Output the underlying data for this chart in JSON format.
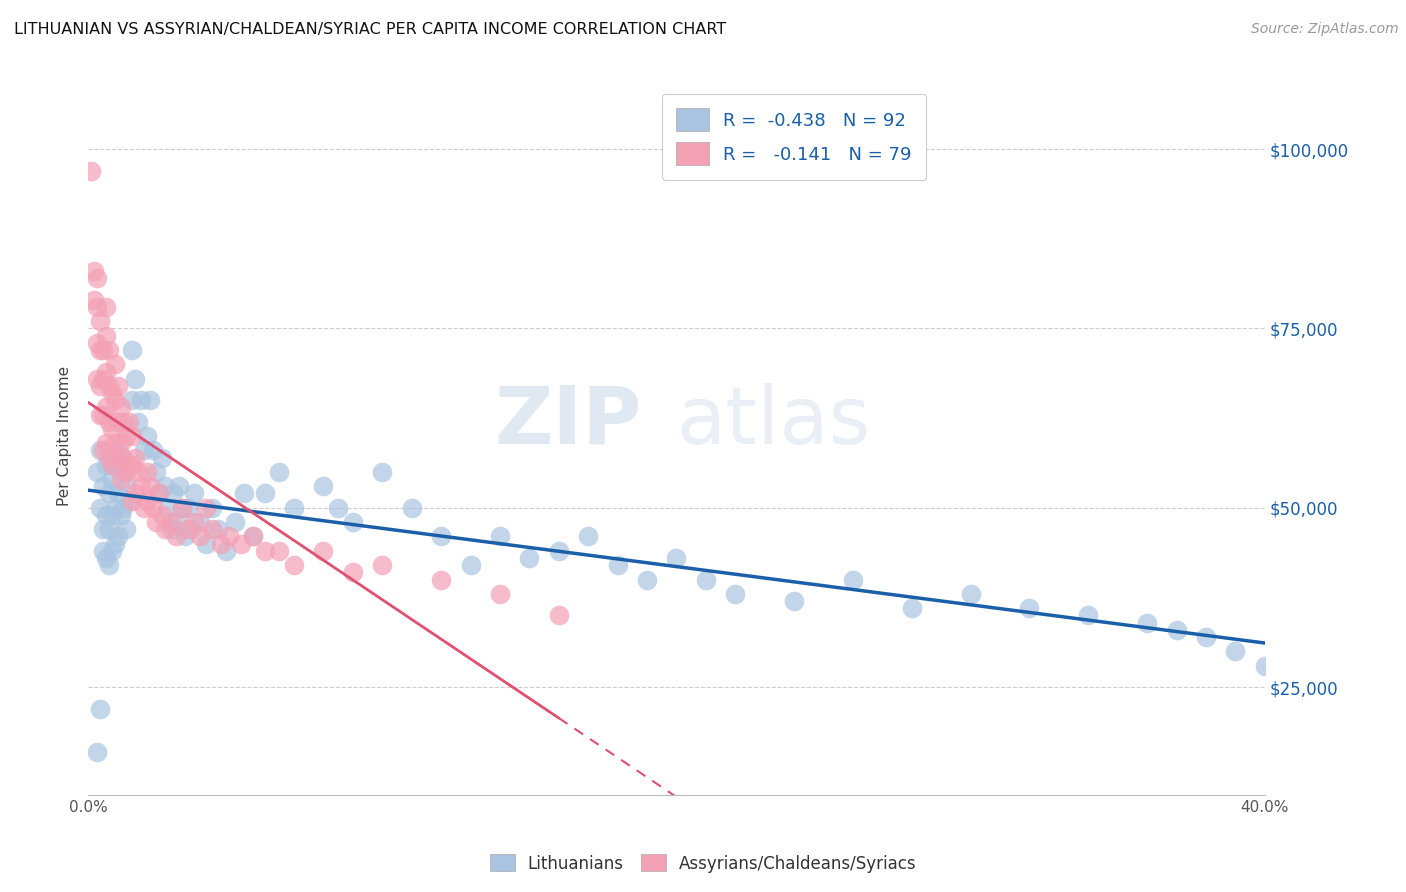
{
  "title": "LITHUANIAN VS ASSYRIAN/CHALDEAN/SYRIAC PER CAPITA INCOME CORRELATION CHART",
  "source": "Source: ZipAtlas.com",
  "ylabel": "Per Capita Income",
  "xlim": [
    0.0,
    0.4
  ],
  "ylim": [
    10000,
    110000
  ],
  "yticks": [
    25000,
    50000,
    75000,
    100000
  ],
  "ytick_labels": [
    "$25,000",
    "$50,000",
    "$75,000",
    "$100,000"
  ],
  "xticks": [
    0.0,
    0.05,
    0.1,
    0.15,
    0.2,
    0.25,
    0.3,
    0.35,
    0.4
  ],
  "blue_R": -0.438,
  "blue_N": 92,
  "pink_R": -0.141,
  "pink_N": 79,
  "blue_color": "#a8c4e0",
  "pink_color": "#f4a0b5",
  "blue_line_color": "#1a5fa8",
  "pink_line_color": "#e05070",
  "watermark_zip": "ZIP",
  "watermark_atlas": "atlas",
  "blue_points_x": [
    0.003,
    0.004,
    0.004,
    0.005,
    0.005,
    0.005,
    0.006,
    0.006,
    0.006,
    0.007,
    0.007,
    0.007,
    0.007,
    0.008,
    0.008,
    0.008,
    0.009,
    0.009,
    0.009,
    0.01,
    0.01,
    0.01,
    0.011,
    0.011,
    0.012,
    0.012,
    0.013,
    0.013,
    0.014,
    0.015,
    0.015,
    0.016,
    0.017,
    0.018,
    0.019,
    0.02,
    0.021,
    0.022,
    0.023,
    0.024,
    0.025,
    0.026,
    0.027,
    0.028,
    0.029,
    0.03,
    0.031,
    0.032,
    0.033,
    0.034,
    0.035,
    0.036,
    0.038,
    0.04,
    0.042,
    0.044,
    0.047,
    0.05,
    0.053,
    0.056,
    0.06,
    0.065,
    0.07,
    0.08,
    0.085,
    0.09,
    0.1,
    0.11,
    0.12,
    0.13,
    0.14,
    0.15,
    0.16,
    0.17,
    0.18,
    0.19,
    0.2,
    0.21,
    0.22,
    0.24,
    0.26,
    0.28,
    0.3,
    0.32,
    0.34,
    0.36,
    0.37,
    0.38,
    0.39,
    0.4,
    0.003,
    0.004
  ],
  "blue_points_y": [
    55000,
    58000,
    50000,
    53000,
    47000,
    44000,
    56000,
    49000,
    43000,
    57000,
    52000,
    47000,
    42000,
    54000,
    49000,
    44000,
    56000,
    50000,
    45000,
    58000,
    52000,
    46000,
    55000,
    49000,
    57000,
    50000,
    53000,
    47000,
    51000,
    72000,
    65000,
    68000,
    62000,
    65000,
    58000,
    60000,
    65000,
    58000,
    55000,
    52000,
    57000,
    53000,
    50000,
    47000,
    52000,
    48000,
    53000,
    50000,
    46000,
    50000,
    47000,
    52000,
    48000,
    45000,
    50000,
    47000,
    44000,
    48000,
    52000,
    46000,
    52000,
    55000,
    50000,
    53000,
    50000,
    48000,
    55000,
    50000,
    46000,
    42000,
    46000,
    43000,
    44000,
    46000,
    42000,
    40000,
    43000,
    40000,
    38000,
    37000,
    40000,
    36000,
    38000,
    36000,
    35000,
    34000,
    33000,
    32000,
    30000,
    28000,
    16000,
    22000
  ],
  "pink_points_x": [
    0.001,
    0.002,
    0.002,
    0.003,
    0.003,
    0.003,
    0.003,
    0.004,
    0.004,
    0.004,
    0.004,
    0.005,
    0.005,
    0.005,
    0.005,
    0.006,
    0.006,
    0.006,
    0.006,
    0.006,
    0.007,
    0.007,
    0.007,
    0.007,
    0.008,
    0.008,
    0.008,
    0.009,
    0.009,
    0.009,
    0.01,
    0.01,
    0.01,
    0.011,
    0.011,
    0.011,
    0.012,
    0.012,
    0.013,
    0.013,
    0.014,
    0.014,
    0.015,
    0.015,
    0.015,
    0.016,
    0.016,
    0.017,
    0.018,
    0.019,
    0.02,
    0.02,
    0.021,
    0.022,
    0.023,
    0.024,
    0.025,
    0.026,
    0.028,
    0.03,
    0.032,
    0.034,
    0.036,
    0.038,
    0.04,
    0.042,
    0.045,
    0.048,
    0.052,
    0.056,
    0.06,
    0.065,
    0.07,
    0.08,
    0.09,
    0.1,
    0.12,
    0.14,
    0.16
  ],
  "pink_points_y": [
    97000,
    83000,
    79000,
    82000,
    78000,
    73000,
    68000,
    76000,
    72000,
    67000,
    63000,
    72000,
    68000,
    63000,
    58000,
    78000,
    74000,
    69000,
    64000,
    59000,
    72000,
    67000,
    62000,
    57000,
    66000,
    61000,
    56000,
    70000,
    65000,
    59000,
    67000,
    62000,
    57000,
    64000,
    59000,
    54000,
    62000,
    57000,
    60000,
    55000,
    62000,
    56000,
    60000,
    56000,
    51000,
    57000,
    52000,
    55000,
    53000,
    50000,
    55000,
    51000,
    53000,
    50000,
    48000,
    52000,
    49000,
    47000,
    48000,
    46000,
    50000,
    47000,
    48000,
    46000,
    50000,
    47000,
    45000,
    46000,
    45000,
    46000,
    44000,
    44000,
    42000,
    44000,
    41000,
    42000,
    40000,
    38000,
    35000
  ],
  "pink_line_xmax": 0.22
}
